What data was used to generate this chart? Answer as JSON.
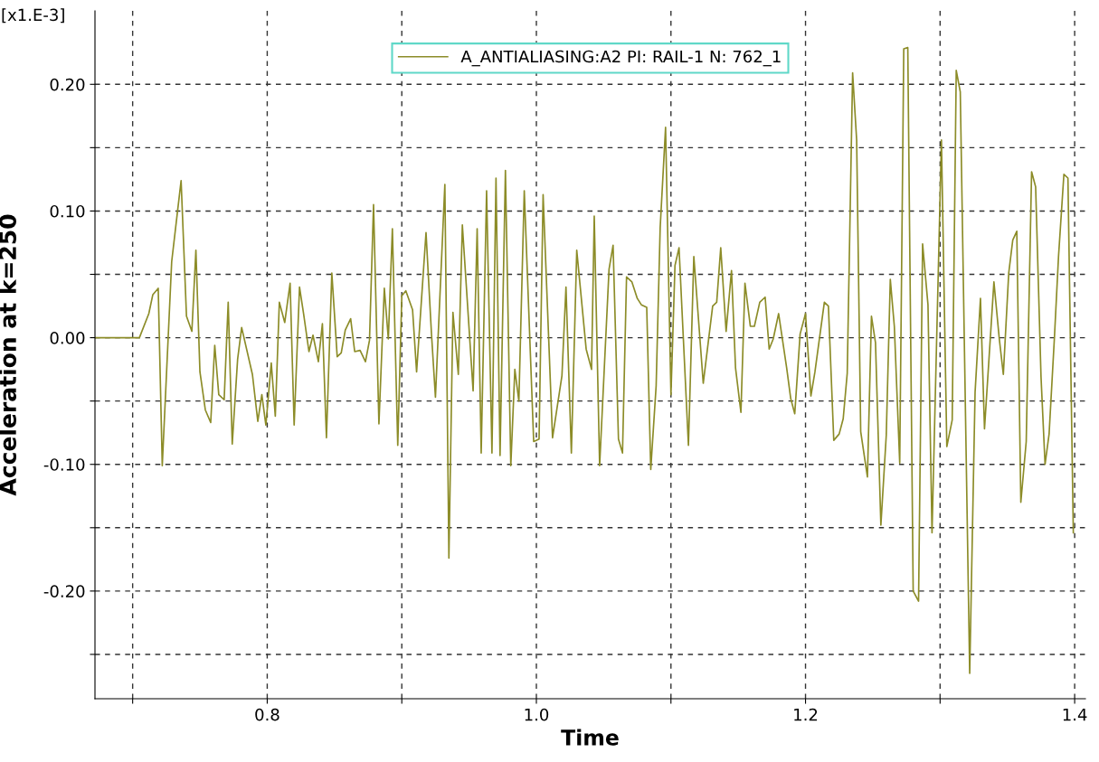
{
  "chart_data": {
    "type": "line",
    "xlabel": "Time",
    "ylabel": "Acceleration at k=250",
    "annotations": [
      "[x1.E-3]"
    ],
    "xlim": [
      0.672,
      1.408
    ],
    "ylim": [
      -0.285,
      0.258
    ],
    "xticks": [
      {
        "value": 0.7,
        "label": null
      },
      0.8,
      {
        "value": 0.9,
        "label": null
      },
      {
        "value": 1.0,
        "label": "1.0"
      },
      {
        "value": 1.1,
        "label": null
      },
      1.2,
      {
        "value": 1.3,
        "label": null
      },
      1.4
    ],
    "yticks": [
      {
        "value": -0.25,
        "label": null
      },
      {
        "value": -0.2,
        "label": "-0.20"
      },
      {
        "value": -0.15,
        "label": null
      },
      {
        "value": -0.1,
        "label": "-0.10"
      },
      {
        "value": -0.05,
        "label": null
      },
      {
        "value": 0,
        "label": "0.00"
      },
      {
        "value": 0.05,
        "label": null
      },
      {
        "value": 0.1,
        "label": "0.10"
      },
      {
        "value": 0.15,
        "label": null
      },
      {
        "value": 0.2,
        "label": "0.20"
      }
    ],
    "grid": true,
    "legend": "top",
    "line_style": "solid",
    "marker": "none",
    "series": [
      {
        "name": "A_ANTIALIASING:A2 PI: RAIL-1 N: 762_1",
        "color": "#8c8c28",
        "x": [
          0.672,
          0.705,
          0.712,
          0.715,
          0.719,
          0.722,
          0.729,
          0.736,
          0.74,
          0.744,
          0.747,
          0.75,
          0.754,
          0.758,
          0.761,
          0.764,
          0.768,
          0.771,
          0.774,
          0.778,
          0.781,
          0.789,
          0.793,
          0.796,
          0.799,
          0.803,
          0.806,
          0.809,
          0.813,
          0.817,
          0.82,
          0.824,
          0.827,
          0.831,
          0.834,
          0.838,
          0.841,
          0.844,
          0.848,
          0.852,
          0.855,
          0.858,
          0.862,
          0.865,
          0.869,
          0.873,
          0.876,
          0.879,
          0.883,
          0.887,
          0.89,
          0.893,
          0.897,
          0.9,
          0.903,
          0.908,
          0.911,
          0.918,
          0.922,
          0.925,
          0.932,
          0.935,
          0.938,
          0.942,
          0.945,
          0.953,
          0.956,
          0.959,
          0.963,
          0.967,
          0.97,
          0.973,
          0.977,
          0.981,
          0.984,
          0.987,
          0.991,
          0.998,
          1.002,
          1.005,
          1.012,
          1.019,
          1.022,
          1.026,
          1.03,
          1.037,
          1.041,
          1.043,
          1.047,
          1.054,
          1.057,
          1.061,
          1.064,
          1.067,
          1.071,
          1.075,
          1.078,
          1.082,
          1.085,
          1.089,
          1.092,
          1.096,
          1.1,
          1.103,
          1.106,
          1.113,
          1.117,
          1.124,
          1.131,
          1.134,
          1.137,
          1.141,
          1.145,
          1.148,
          1.152,
          1.155,
          1.159,
          1.162,
          1.166,
          1.17,
          1.173,
          1.176,
          1.18,
          1.186,
          1.189,
          1.192,
          1.196,
          1.2,
          1.204,
          1.207,
          1.214,
          1.217,
          1.221,
          1.225,
          1.228,
          1.231,
          1.235,
          1.238,
          1.241,
          1.246,
          1.249,
          1.252,
          1.256,
          1.26,
          1.263,
          1.266,
          1.27,
          1.273,
          1.276,
          1.28,
          1.284,
          1.287,
          1.291,
          1.294,
          1.301,
          1.305,
          1.309,
          1.312,
          1.315,
          1.322,
          1.326,
          1.33,
          1.333,
          1.34,
          1.344,
          1.347,
          1.351,
          1.354,
          1.357,
          1.36,
          1.364,
          1.368,
          1.371,
          1.375,
          1.378,
          1.381,
          1.385,
          1.388,
          1.392,
          1.395,
          1.399
        ],
        "values": [
          0,
          0,
          0.019,
          0.034,
          0.039,
          -0.101,
          0.06,
          0.124,
          0.017,
          0.005,
          0.069,
          -0.027,
          -0.057,
          -0.067,
          -0.006,
          -0.045,
          -0.049,
          0.028,
          -0.084,
          -0.017,
          0.008,
          -0.029,
          -0.066,
          -0.045,
          -0.069,
          -0.02,
          -0.062,
          0.028,
          0.012,
          0.043,
          -0.069,
          0.04,
          0.019,
          -0.011,
          0.002,
          -0.019,
          0.011,
          -0.079,
          0.051,
          -0.015,
          -0.012,
          0.006,
          0.015,
          -0.011,
          -0.01,
          -0.019,
          -0.002,
          0.105,
          -0.068,
          0.039,
          -0.001,
          0.086,
          -0.085,
          0.033,
          0.037,
          0.022,
          -0.027,
          0.083,
          0.004,
          -0.047,
          0.121,
          -0.174,
          0.02,
          -0.029,
          0.089,
          -0.042,
          0.086,
          -0.091,
          0.116,
          -0.091,
          0.126,
          -0.093,
          0.132,
          -0.101,
          -0.025,
          -0.05,
          0.116,
          -0.082,
          -0.08,
          0.113,
          -0.079,
          -0.03,
          0.04,
          -0.091,
          0.069,
          -0.009,
          -0.025,
          0.096,
          -0.101,
          0.054,
          0.073,
          -0.08,
          -0.091,
          0.048,
          0.044,
          0.031,
          0.026,
          0.024,
          -0.104,
          -0.038,
          0.087,
          0.166,
          -0.045,
          0.057,
          0.071,
          -0.085,
          0.064,
          -0.036,
          0.025,
          0.028,
          0.071,
          0.005,
          0.053,
          -0.024,
          -0.059,
          0.043,
          0.009,
          0.009,
          0.028,
          0.032,
          -0.009,
          -0.001,
          0.019,
          -0.024,
          -0.048,
          -0.06,
          0.003,
          0.019,
          -0.046,
          -0.027,
          0.028,
          0.025,
          -0.081,
          -0.076,
          -0.064,
          -0.028,
          0.209,
          0.156,
          -0.074,
          -0.11,
          0.017,
          -0.004,
          -0.148,
          -0.077,
          0.046,
          0.009,
          -0.099,
          0.228,
          0.229,
          -0.2,
          -0.208,
          0.074,
          0.026,
          -0.154,
          0.156,
          -0.086,
          -0.065,
          0.211,
          0.194,
          -0.265,
          -0.043,
          0.031,
          -0.072,
          0.044,
          -0.001,
          -0.029,
          0.051,
          0.077,
          0.084,
          -0.13,
          -0.082,
          0.131,
          0.119,
          -0.031,
          -0.1,
          -0.076,
          0.001,
          0.064,
          0.129,
          0.126,
          -0.154
        ]
      }
    ]
  }
}
